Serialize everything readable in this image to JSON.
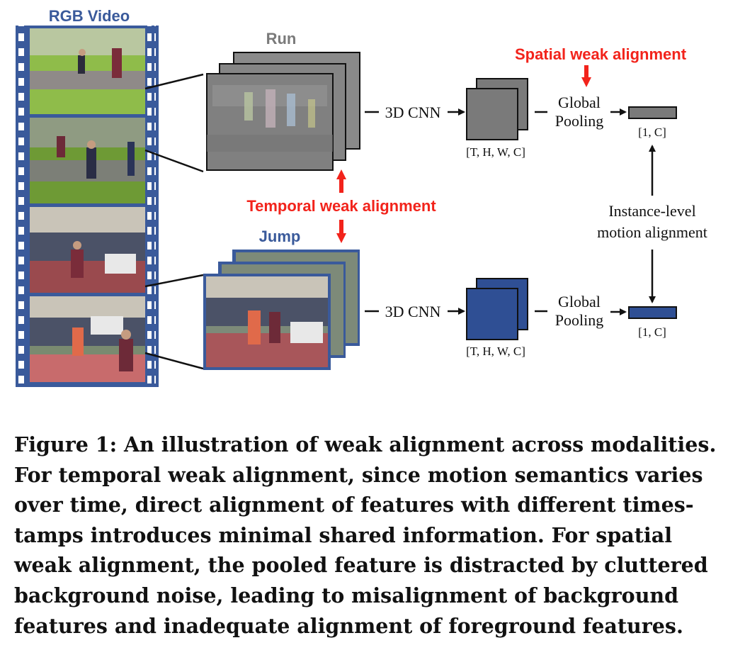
{
  "diagram": {
    "video_title": "RGB Video",
    "run_label": "Run",
    "jump_label": "Jump",
    "spatial_label": "Spatial weak alignment",
    "temporal_label": "Temporal weak alignment",
    "cnn_top": "3D CNN",
    "cnn_bottom": "3D CNN",
    "pool_top_line1": "Global",
    "pool_top_line2": "Pooling",
    "pool_bottom_line1": "Global",
    "pool_bottom_line2": "Pooling",
    "feat_dims_top": "[T, H, W, C]",
    "feat_dims_bottom": "[T, H, W, C]",
    "vec_dims_top": "[1, C]",
    "vec_dims_bottom": "[1, C]",
    "instance_line1": "Instance-level",
    "instance_line2": "motion alignment",
    "colors": {
      "film_blue": "#3a5a9b",
      "run_gray": "#7a7a7a",
      "jump_blue": "#2f4f94",
      "red": "#f2231b",
      "grass": "#6e9a35",
      "track": "#8a8d88"
    }
  },
  "caption": {
    "line1": "Figure 1: An illustration of weak alignment across modalities.",
    "line2": "For temporal weak alignment, since motion semantics varies",
    "line3": "over time, direct alignment of features with different times-",
    "line4": "tamps introduces minimal shared information. For spatial",
    "line5": "weak alignment, the pooled feature is distracted by cluttered",
    "line6": "background noise, leading to misalignment of background",
    "line7": "features and inadequate alignment of foreground features."
  }
}
